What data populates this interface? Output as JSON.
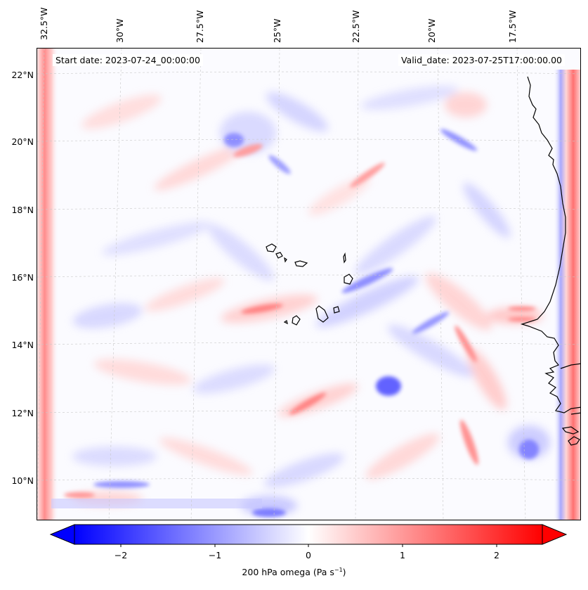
{
  "map": {
    "start_date": "Start date: 2023-07-24_00:00:00",
    "valid_date": "Valid_date: 2023-07-25T17:00:00.00",
    "lon_labels": [
      "32.5°W",
      "30°W",
      "27.5°W",
      "25°W",
      "22.5°W",
      "20°W",
      "17.5°W"
    ],
    "lat_labels": [
      "22°N",
      "20°N",
      "18°N",
      "16°N",
      "14°N",
      "12°N",
      "10°N"
    ],
    "colormap": "bwr",
    "colors": {
      "negative": "#0000ff",
      "zero": "#ffffff",
      "positive": "#ff0000",
      "coastline": "#000000",
      "gridline": "#c8c8c8"
    }
  },
  "colorbar": {
    "label_prefix": "200 hPa omega (Pa s",
    "label_exponent": "−1",
    "label_suffix": ")",
    "ticks": [
      "−2",
      "−1",
      "0",
      "1",
      "2"
    ],
    "range": [
      -2.75,
      2.75
    ],
    "extend": "both"
  }
}
